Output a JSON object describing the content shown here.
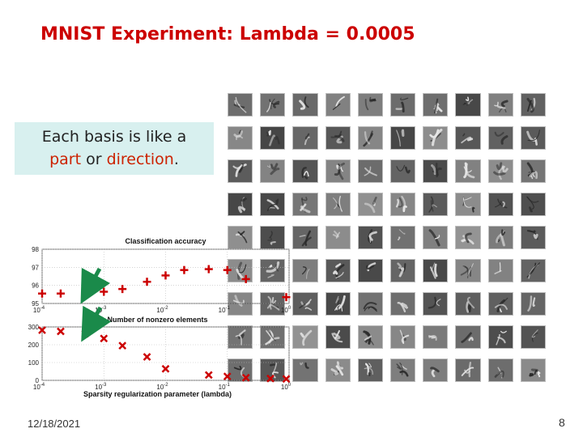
{
  "slide": {
    "title": "MNIST Experiment: Lambda = 0.0005",
    "callout": {
      "line1": "Each basis is like a",
      "part": "part",
      "or": " or ",
      "direction": "direction",
      "period": "."
    },
    "footer_date": "12/18/2021",
    "page_number": "8"
  },
  "basis_images": {
    "rows": 9,
    "cols": 10
  },
  "colors": {
    "title": "#cc0000",
    "callout_bg": "#d8f0ef",
    "marker": "#cc0000",
    "arrow": "#1a8a4a"
  },
  "chart_data": [
    {
      "type": "scatter",
      "title": "Classification accuracy",
      "xlabel": "Number of nonzero elements",
      "xscale": "log",
      "xlim": [
        0.0001,
        1
      ],
      "ylim": [
        95,
        98
      ],
      "yticks": [
        "95",
        "96",
        "97",
        "98"
      ],
      "xticks": [
        "10",
        "10",
        "10",
        "10",
        "10"
      ],
      "xtick_exponents": [
        "-4",
        "-3",
        "-2",
        "-1",
        "0"
      ],
      "marker": "plus",
      "points": [
        {
          "x": 0.0001,
          "y": 95.55
        },
        {
          "x": 0.0002,
          "y": 95.55
        },
        {
          "x": 0.0005,
          "y": 95.55
        },
        {
          "x": 0.001,
          "y": 95.65
        },
        {
          "x": 0.002,
          "y": 95.8
        },
        {
          "x": 0.005,
          "y": 96.2
        },
        {
          "x": 0.01,
          "y": 96.55
        },
        {
          "x": 0.02,
          "y": 96.85
        },
        {
          "x": 0.05,
          "y": 96.9
        },
        {
          "x": 0.1,
          "y": 96.85
        },
        {
          "x": 0.2,
          "y": 96.35
        },
        {
          "x": 0.9,
          "y": 95.35
        }
      ]
    },
    {
      "type": "scatter",
      "xlabel": "Sparsity regularization parameter (lambda)",
      "xscale": "log",
      "xlim": [
        0.0001,
        1
      ],
      "ylim": [
        0,
        300
      ],
      "yticks": [
        "0",
        "100",
        "200",
        "300"
      ],
      "xticks": [
        "10",
        "10",
        "10",
        "10",
        "10"
      ],
      "xtick_exponents": [
        "-4",
        "-3",
        "-2",
        "-1",
        "0"
      ],
      "marker": "x",
      "points": [
        {
          "x": 0.0001,
          "y": 282
        },
        {
          "x": 0.0002,
          "y": 275
        },
        {
          "x": 0.0005,
          "y": 262
        },
        {
          "x": 0.001,
          "y": 235
        },
        {
          "x": 0.002,
          "y": 195
        },
        {
          "x": 0.005,
          "y": 132
        },
        {
          "x": 0.01,
          "y": 65
        },
        {
          "x": 0.05,
          "y": 30
        },
        {
          "x": 0.1,
          "y": 22
        },
        {
          "x": 0.2,
          "y": 15
        },
        {
          "x": 0.5,
          "y": 10
        },
        {
          "x": 0.9,
          "y": 8
        }
      ]
    }
  ]
}
